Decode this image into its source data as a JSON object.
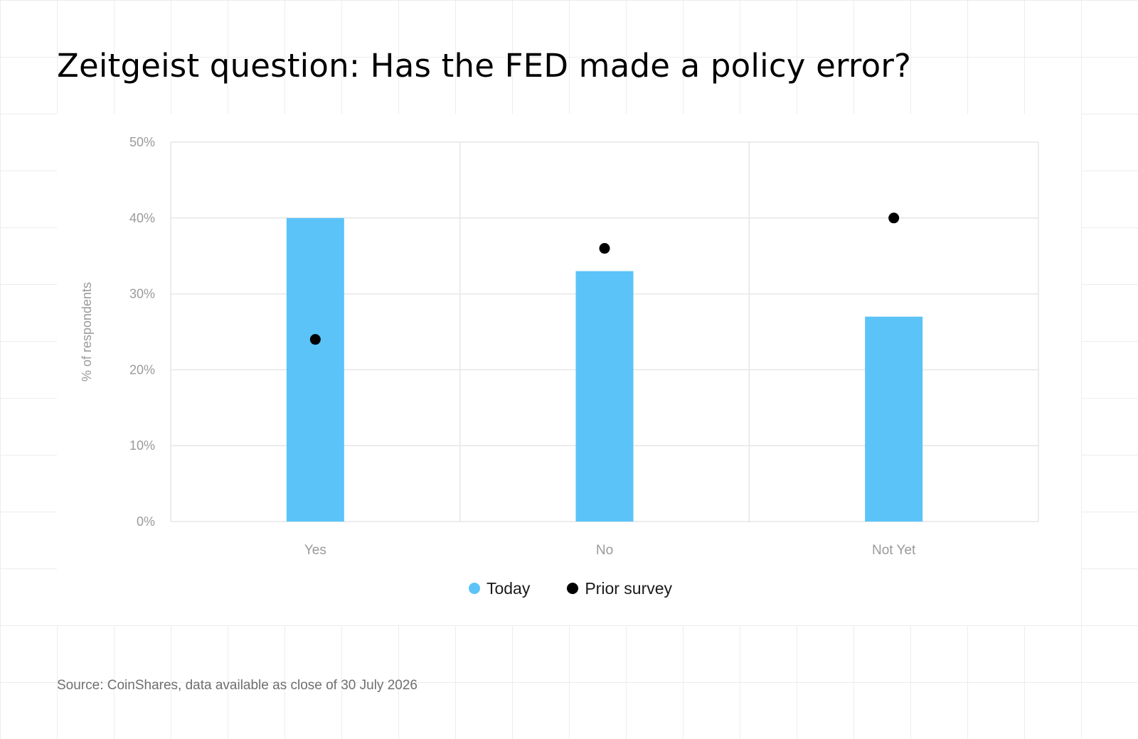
{
  "title": "Zeitgeist question: Has the FED made a policy error?",
  "source": "Source: CoinShares, data available as close of 30 July 2026",
  "colors": {
    "today": "#5bc3f8",
    "prior": "#000000",
    "gridline": "#e6e6e6",
    "axis_text": "#9a9a9a"
  },
  "legend": [
    {
      "label": "Today",
      "color": "#5bc3f8"
    },
    {
      "label": "Prior survey",
      "color": "#000000"
    }
  ],
  "chart_data": {
    "type": "bar",
    "categories": [
      "Yes",
      "No",
      "Not Yet"
    ],
    "series": [
      {
        "name": "Today",
        "type": "bar",
        "values": [
          40,
          33,
          27
        ]
      },
      {
        "name": "Prior survey",
        "type": "scatter",
        "values": [
          24,
          36,
          40
        ]
      }
    ],
    "ylabel": "% of respondents",
    "xlabel": "",
    "ylim": [
      0,
      50
    ],
    "yticks": [
      "0%",
      "10%",
      "20%",
      "30%",
      "40%",
      "50%"
    ],
    "grid": true,
    "legend_position": "bottom-center"
  }
}
